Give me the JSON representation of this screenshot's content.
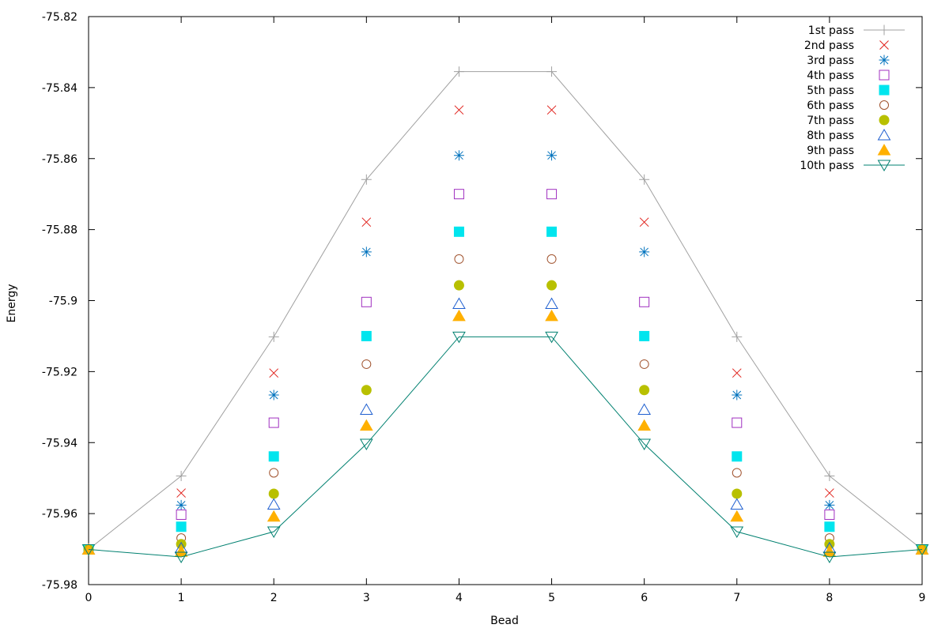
{
  "chart_data": {
    "type": "line",
    "xlabel": "Bead",
    "ylabel": "Energy",
    "xlim": [
      0,
      9
    ],
    "ylim": [
      -75.98,
      -75.82
    ],
    "xticks": [
      0,
      1,
      2,
      3,
      4,
      5,
      6,
      7,
      8,
      9
    ],
    "yticks": [
      -75.98,
      -75.96,
      -75.94,
      -75.92,
      -75.9,
      -75.88,
      -75.86,
      -75.84,
      -75.82
    ],
    "ytick_labels": [
      "-75.98",
      "-75.96",
      "-75.94",
      "-75.92",
      "-75.9",
      "-75.88",
      "-75.86",
      "-75.84",
      "-75.82"
    ],
    "grid": false,
    "legend_position": "top-right",
    "x": [
      0,
      1,
      2,
      3,
      4,
      5,
      6,
      7,
      8,
      9
    ],
    "series": [
      {
        "name": "1st pass",
        "marker": "plus",
        "line": true,
        "color": "#a0a0a0",
        "values": [
          -75.9701,
          -75.9494,
          -75.9102,
          -75.8659,
          -75.8355,
          -75.8355,
          -75.8659,
          -75.9102,
          -75.9494,
          -75.9701
        ]
      },
      {
        "name": "2nd pass",
        "marker": "cross",
        "line": false,
        "color": "#e0201a",
        "values": [
          -75.9701,
          -75.9542,
          -75.9204,
          -75.8779,
          -75.8463,
          -75.8463,
          -75.8779,
          -75.9204,
          -75.9542,
          -75.9701
        ]
      },
      {
        "name": "3rd pass",
        "marker": "star",
        "line": false,
        "color": "#0072bd",
        "values": [
          -75.9701,
          -75.9576,
          -75.9266,
          -75.8863,
          -75.8591,
          -75.8591,
          -75.8863,
          -75.9266,
          -75.9576,
          -75.9701
        ]
      },
      {
        "name": "4th pass",
        "marker": "square-open",
        "line": false,
        "color": "#a030c0",
        "values": [
          -75.9701,
          -75.9603,
          -75.9344,
          -75.9004,
          -75.87,
          -75.87,
          -75.9004,
          -75.9344,
          -75.9603,
          -75.9701
        ]
      },
      {
        "name": "5th pass",
        "marker": "square-filled",
        "line": false,
        "color": "#00e5ee",
        "values": [
          -75.9701,
          -75.9637,
          -75.9439,
          -75.91,
          -75.8806,
          -75.8806,
          -75.91,
          -75.9439,
          -75.9637,
          -75.9701
        ]
      },
      {
        "name": "6th pass",
        "marker": "circle-open",
        "line": false,
        "color": "#a0522d",
        "values": [
          -75.9701,
          -75.9669,
          -75.9485,
          -75.9179,
          -75.8883,
          -75.8883,
          -75.9179,
          -75.9485,
          -75.9669,
          -75.9701
        ]
      },
      {
        "name": "7th pass",
        "marker": "circle-filled",
        "line": false,
        "color": "#b8c000",
        "values": [
          -75.9701,
          -75.9686,
          -75.9544,
          -75.9252,
          -75.8957,
          -75.8957,
          -75.9252,
          -75.9544,
          -75.9686,
          -75.9701
        ]
      },
      {
        "name": "8th pass",
        "marker": "triangle-open",
        "line": false,
        "color": "#1f5fd0",
        "values": [
          -75.9701,
          -75.9697,
          -75.9574,
          -75.9307,
          -75.9009,
          -75.9009,
          -75.9307,
          -75.9574,
          -75.9697,
          -75.9701
        ]
      },
      {
        "name": "9th pass",
        "marker": "triangle-filled",
        "line": false,
        "color": "#ffb000",
        "values": [
          -75.9701,
          -75.9707,
          -75.9608,
          -75.9352,
          -75.9043,
          -75.9043,
          -75.9352,
          -75.9608,
          -75.9707,
          -75.9701
        ]
      },
      {
        "name": "10th pass",
        "marker": "triangle-down-open",
        "line": true,
        "color": "#008070",
        "values": [
          -75.9701,
          -75.9722,
          -75.9651,
          -75.9404,
          -75.9102,
          -75.9102,
          -75.9404,
          -75.9651,
          -75.9722,
          -75.9701
        ]
      }
    ]
  }
}
